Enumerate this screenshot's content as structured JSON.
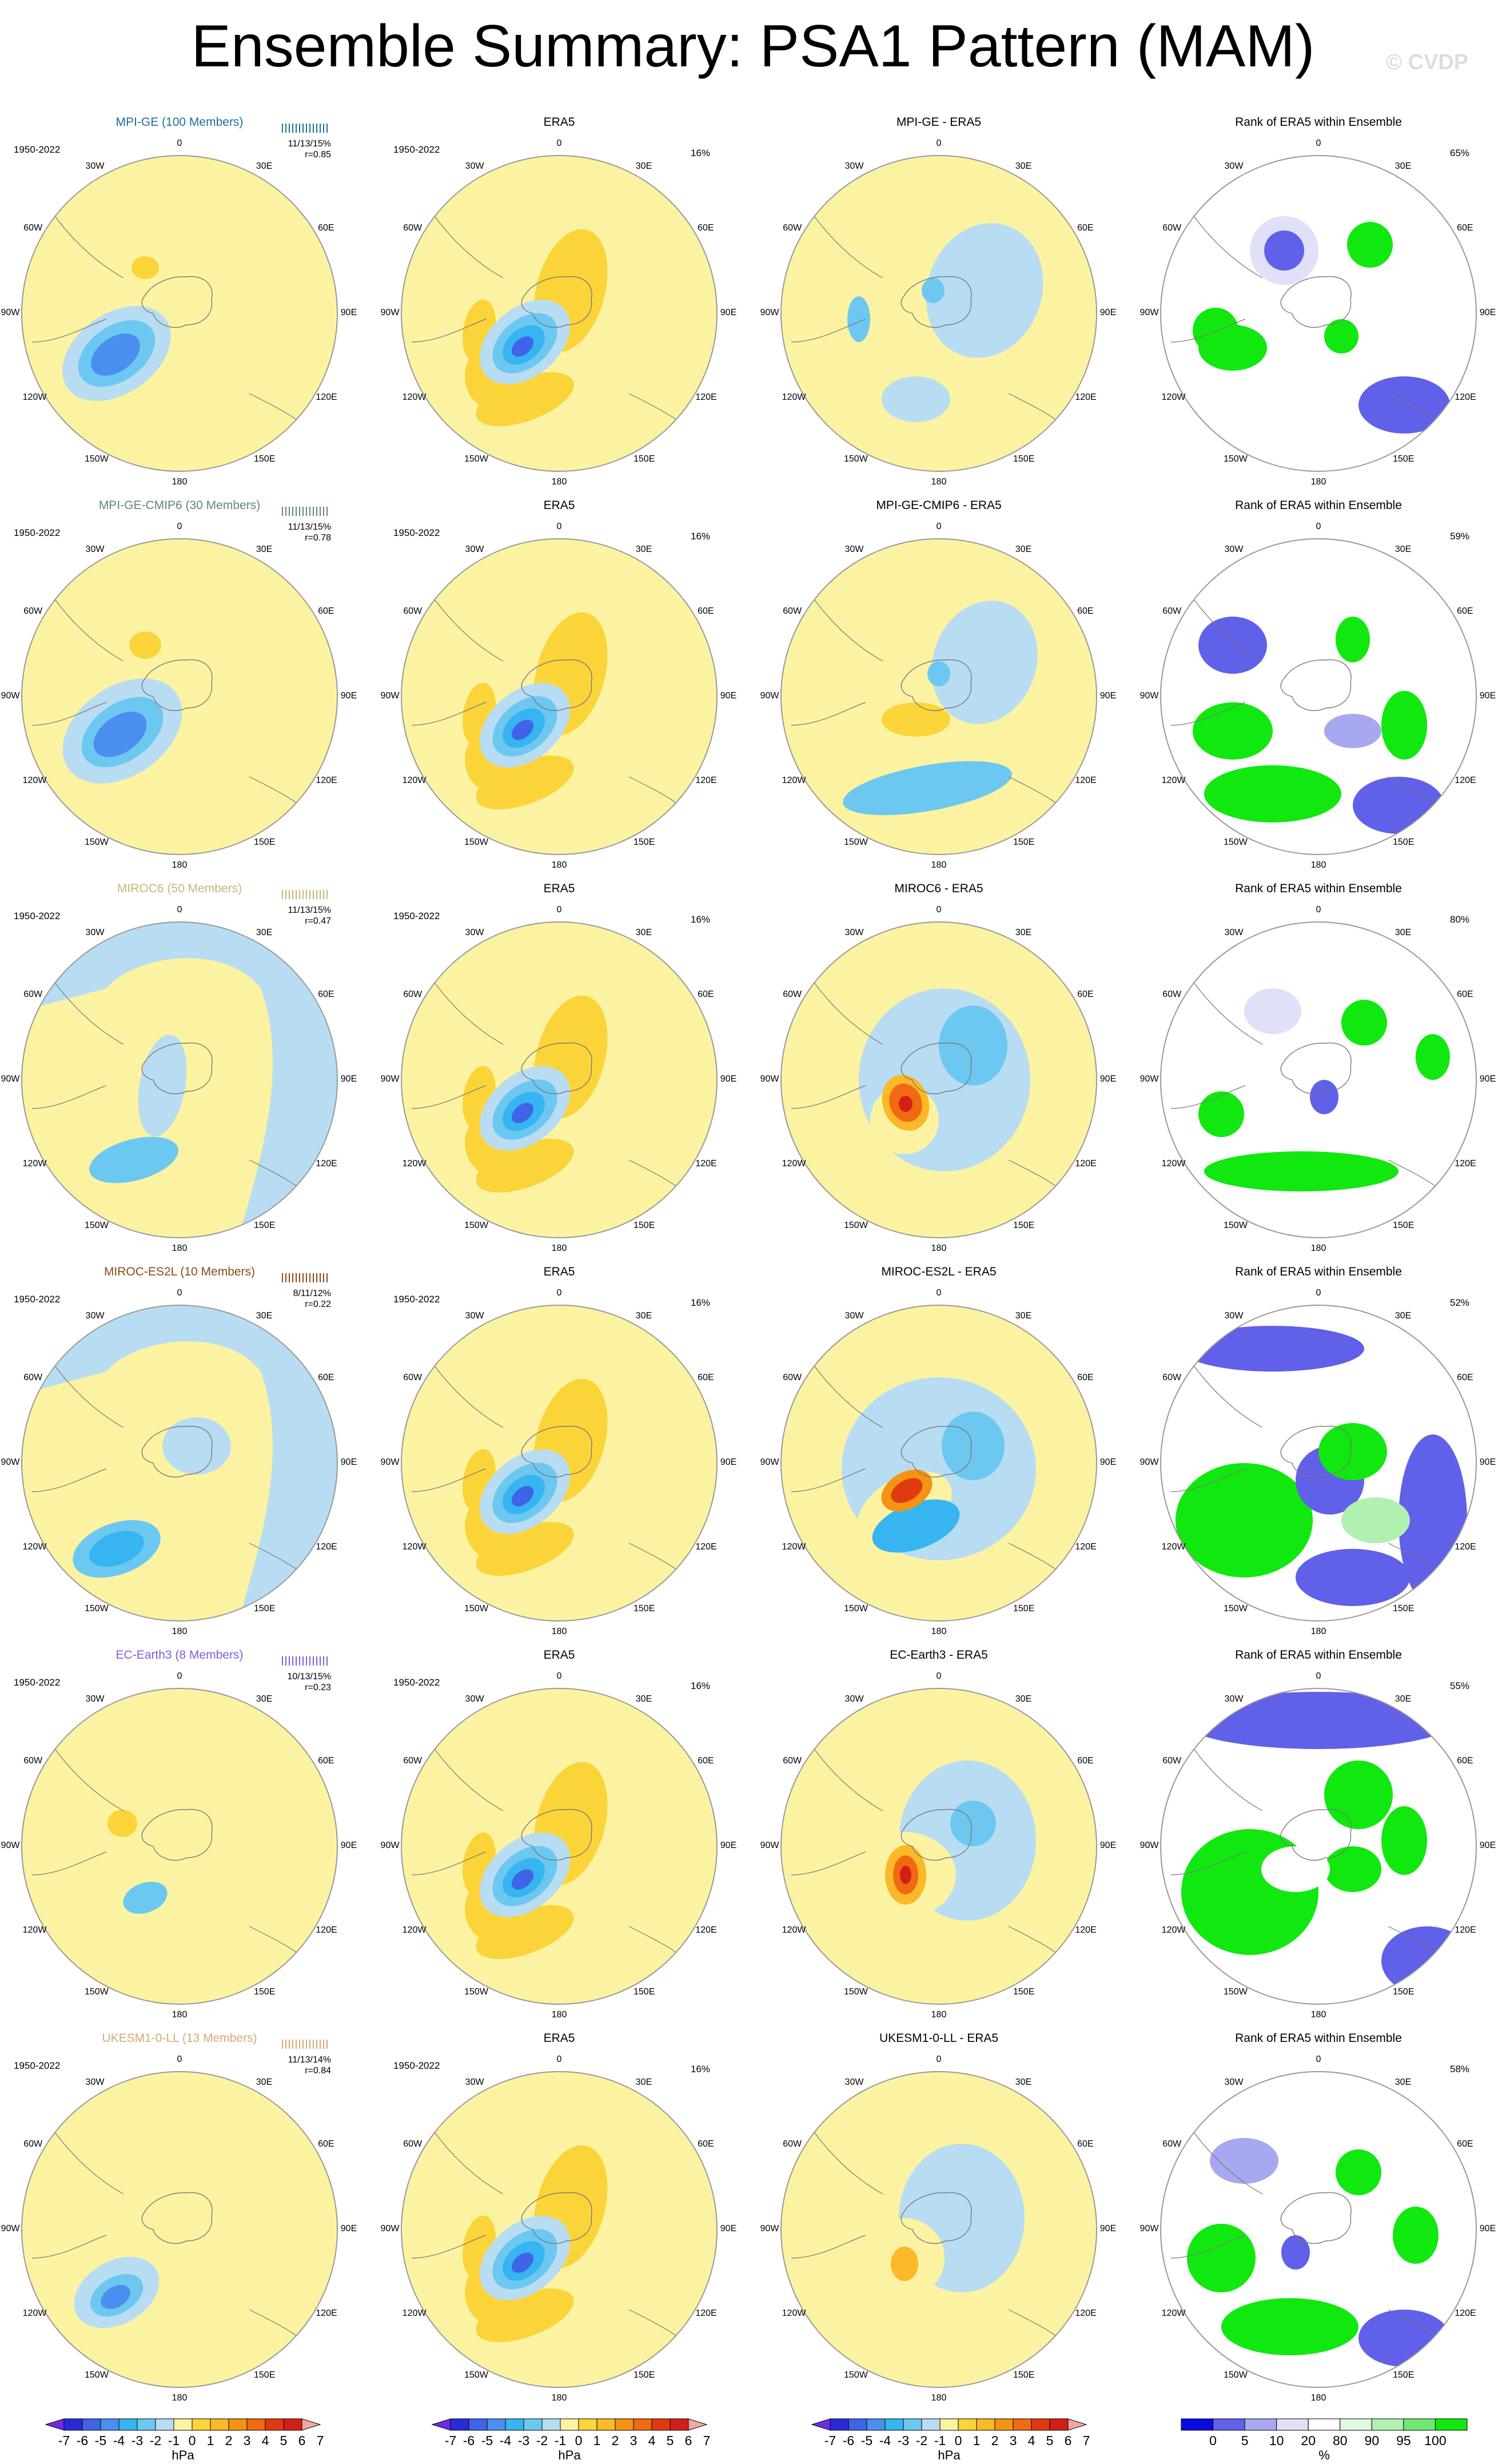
{
  "title": "Ensemble Summary: PSA1 Pattern (MAM)",
  "credit": "© CVDP",
  "period": "1950-2022",
  "longitude_labels": [
    "0",
    "30E",
    "60E",
    "90E",
    "120E",
    "150E",
    "180",
    "150W",
    "120W",
    "90W",
    "60W",
    "30W"
  ],
  "colors": {
    "model_titles": [
      "#1f6f96",
      "#5e8a6e",
      "#c6b679",
      "#8b4a1c",
      "#7d5fe0",
      "#d6a878"
    ],
    "pressure_scale": [
      "#6d2ce0",
      "#2b2bd6",
      "#3f64e8",
      "#4a8ff0",
      "#36b5f0",
      "#6cc8f0",
      "#b8ddf2",
      "#fcf3a2",
      "#fbd43a",
      "#fbb828",
      "#f59314",
      "#ef6a12",
      "#e23a10",
      "#d21f18",
      "#f0a8a0"
    ],
    "rank_scale": [
      "#0a0ae0",
      "#6060e8",
      "#a8a8f0",
      "#e0e0f8",
      "#ffffff",
      "#e0fae0",
      "#b0f0b0",
      "#70e870",
      "#10e810"
    ]
  },
  "rows": [
    {
      "model": "MPI-GE (100 Members)",
      "stats": "11/13/15%",
      "r": "r=0.85",
      "diff_title": "MPI-GE - ERA5",
      "rank_pct": "65%"
    },
    {
      "model": "MPI-GE-CMIP6 (30 Members)",
      "stats": "11/13/15%",
      "r": "r=0.78",
      "diff_title": "MPI-GE-CMIP6 - ERA5",
      "rank_pct": "59%"
    },
    {
      "model": "MIROC6 (50 Members)",
      "stats": "11/13/15%",
      "r": "r=0.47",
      "diff_title": "MIROC6 - ERA5",
      "rank_pct": "80%"
    },
    {
      "model": "MIROC-ES2L (10 Members)",
      "stats": "8/11/12%",
      "r": "r=0.22",
      "diff_title": "MIROC-ES2L - ERA5",
      "rank_pct": "52%"
    },
    {
      "model": "EC-Earth3 (8 Members)",
      "stats": "10/13/15%",
      "r": "r=0.23",
      "diff_title": "EC-Earth3 - ERA5",
      "rank_pct": "55%"
    },
    {
      "model": "UKESM1-0-LL (13 Members)",
      "stats": "11/13/14%",
      "r": "r=0.84",
      "diff_title": "UKESM1-0-LL - ERA5",
      "rank_pct": "58%"
    }
  ],
  "era5": {
    "title": "ERA5",
    "pct": "16%"
  },
  "rank_title": "Rank of ERA5 within Ensemble",
  "pressure_colorbar": {
    "ticks": [
      "-7",
      "-6",
      "-5",
      "-4",
      "-3",
      "-2",
      "-1",
      "0",
      "1",
      "2",
      "3",
      "4",
      "5",
      "6",
      "7"
    ],
    "unit": "hPa"
  },
  "rank_colorbar": {
    "ticks": [
      "0",
      "5",
      "10",
      "20",
      "80",
      "90",
      "95",
      "100"
    ],
    "unit": "%"
  }
}
